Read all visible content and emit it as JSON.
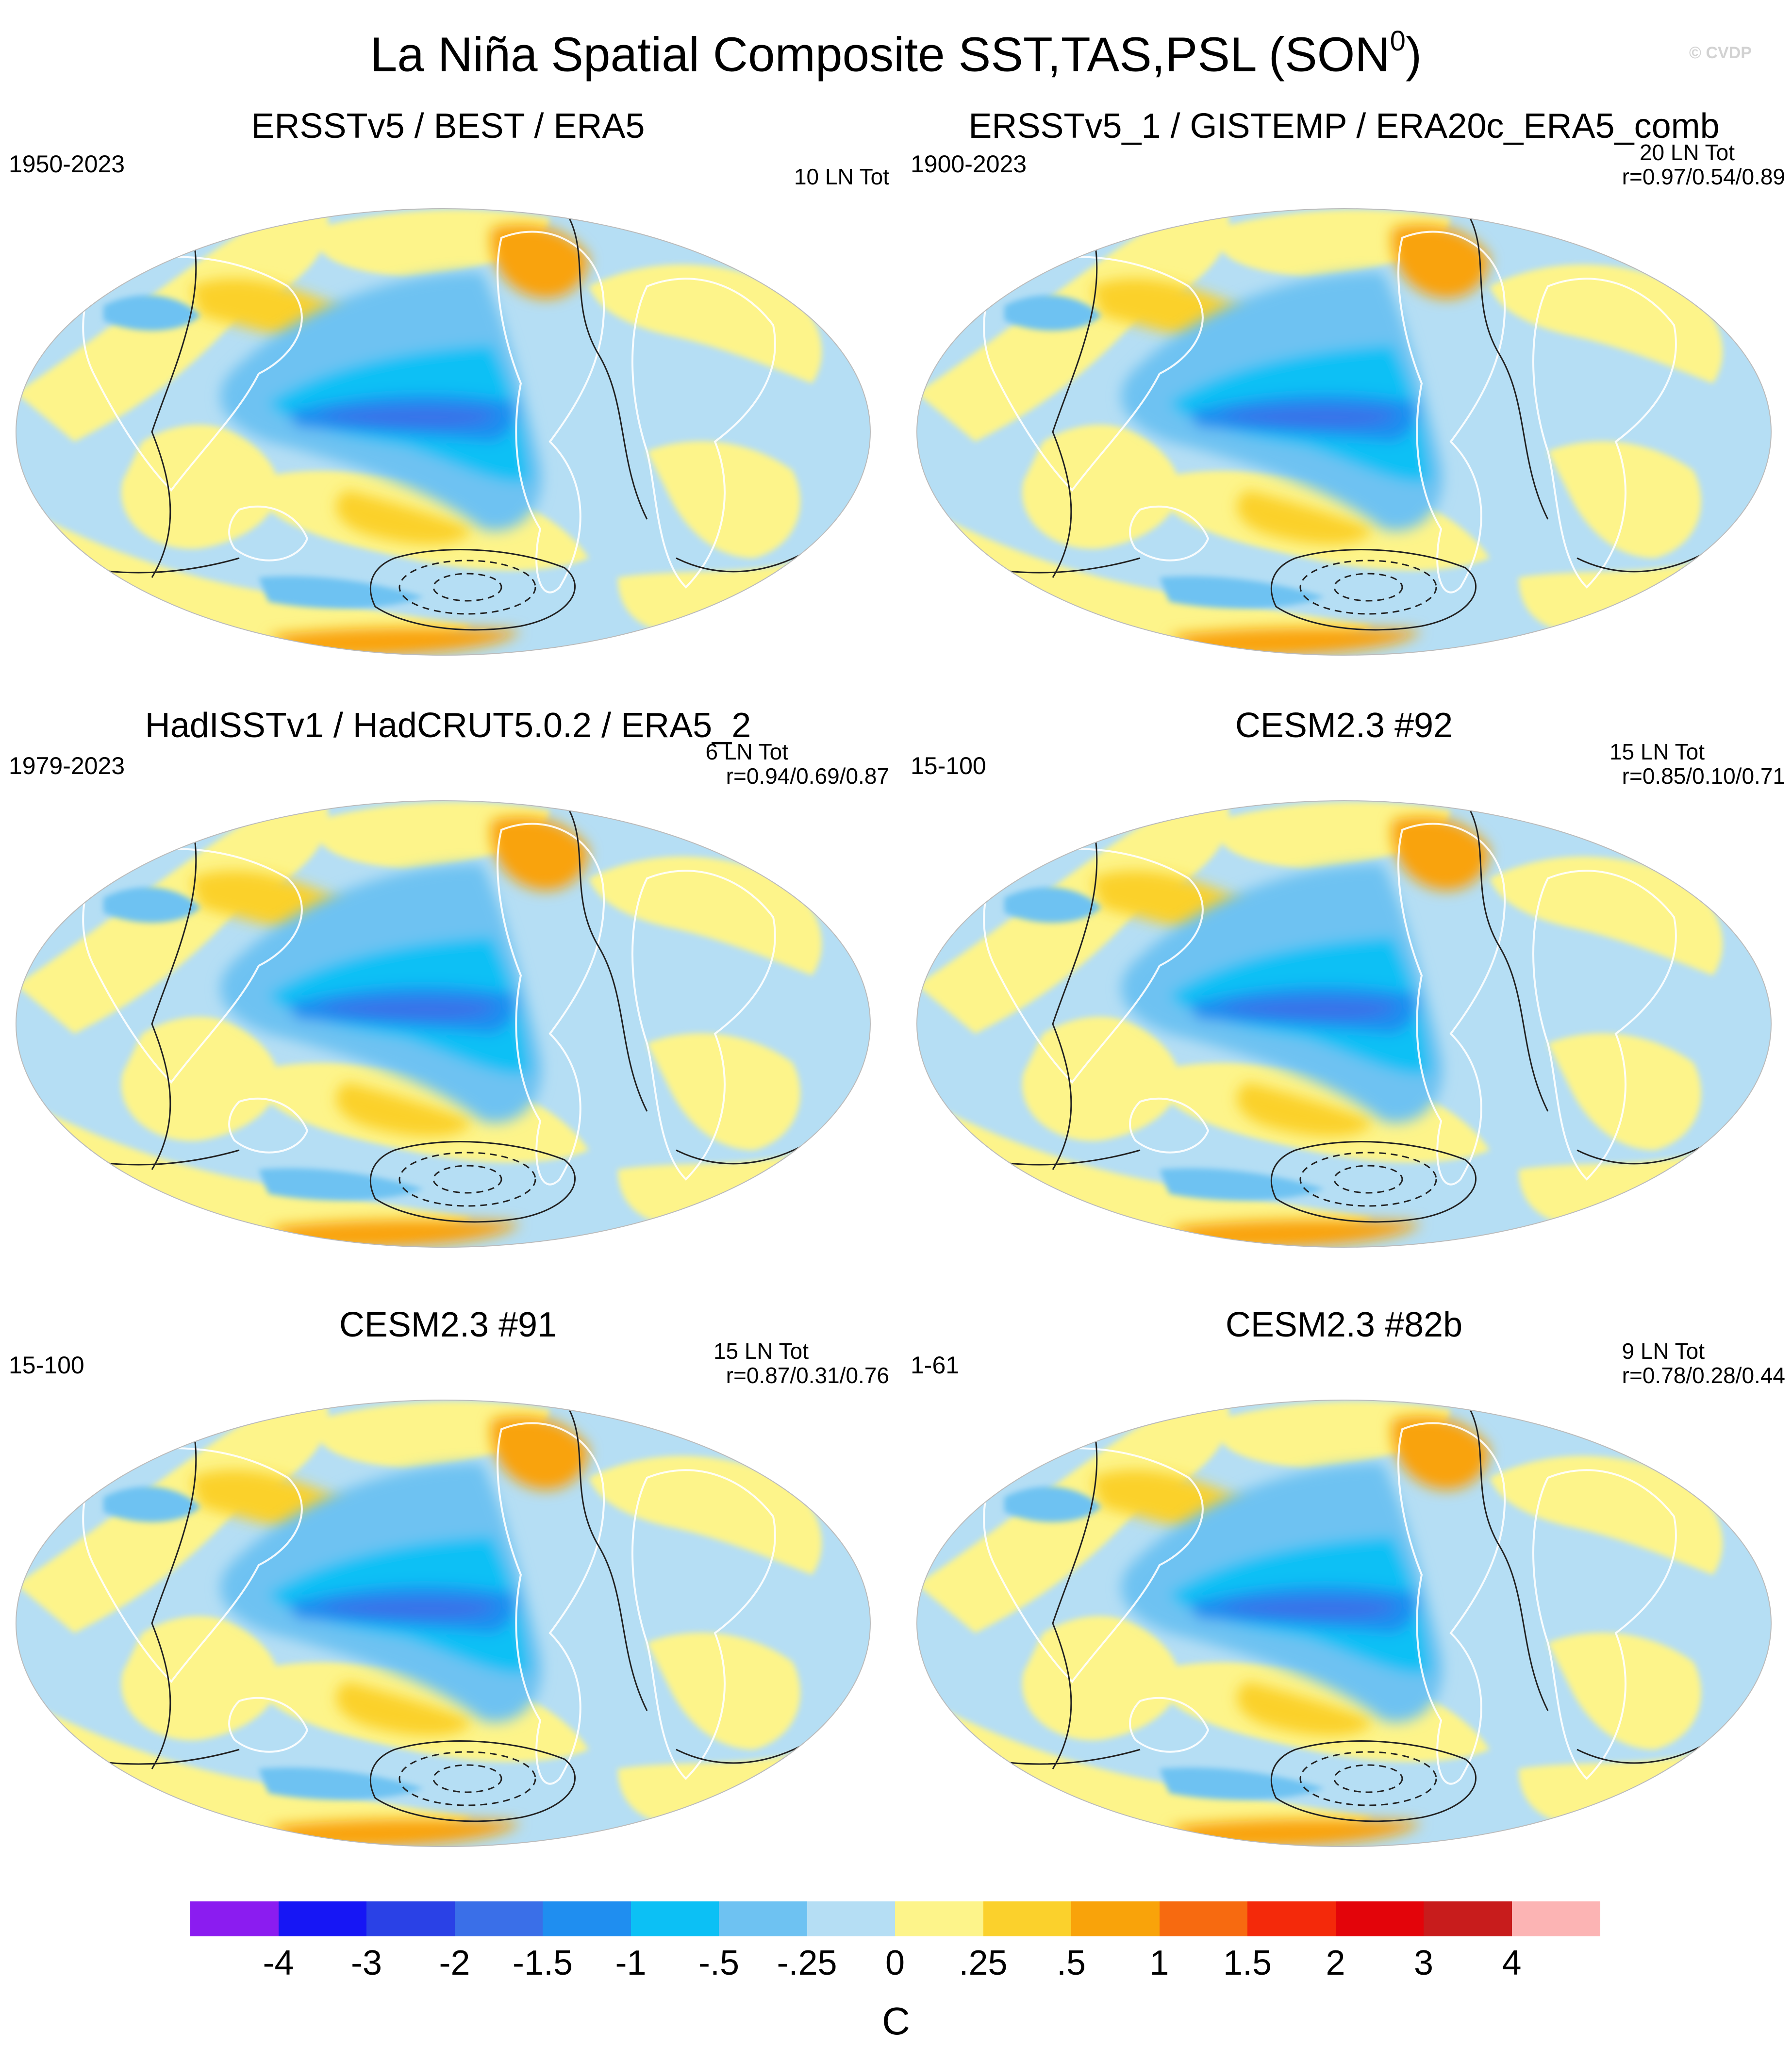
{
  "title": "La Niña Spatial Composite SST,TAS,PSL (SON",
  "title_superscript": "0",
  "title_suffix": ")",
  "watermark": "© CVDP",
  "panels": [
    {
      "title": "ERSSTv5 / BEST / ERA5",
      "period": "1950-2023",
      "count": "10 LN Tot",
      "corr": ""
    },
    {
      "title": "ERSSTv5_1 / GISTEMP / ERA20c_ERA5_comb",
      "period": "1900-2023",
      "count": "20 LN Tot",
      "corr": "r=0.97/0.54/0.89"
    },
    {
      "title": "HadISSTv1 / HadCRUT5.0.2 / ERA5_2",
      "period": "1979-2023",
      "count": "6 LN Tot",
      "corr": "r=0.94/0.69/0.87"
    },
    {
      "title": "CESM2.3 #92",
      "period": "15-100",
      "count": "15 LN Tot",
      "corr": "r=0.85/0.10/0.71"
    },
    {
      "title": "CESM2.3 #91",
      "period": "15-100",
      "count": "15 LN Tot",
      "corr": "r=0.87/0.31/0.76"
    },
    {
      "title": "CESM2.3 #82b",
      "period": "1-61",
      "count": "9 LN Tot",
      "corr": "r=0.78/0.28/0.44"
    }
  ],
  "colorbar": {
    "units": "C",
    "labels": [
      "-4",
      "-3",
      "-2",
      "-1.5",
      "-1",
      "-.5",
      "-.25",
      "0",
      ".25",
      ".5",
      "1",
      "1.5",
      "2",
      "3",
      "4"
    ],
    "colors": [
      "#8b1cf0",
      "#1616f5",
      "#2a41e6",
      "#3a6fe8",
      "#1f8ef0",
      "#0cc0f5",
      "#6ec2f2",
      "#b5def4",
      "#fdf48a",
      "#fbd12c",
      "#f9a30a",
      "#f76a10",
      "#f4290a",
      "#e3040a",
      "#c81c1c",
      "#fcb4b4"
    ]
  },
  "chart_data": {
    "type": "heatmap",
    "title": "La Niña Spatial Composite SST,TAS,PSL (SON0)",
    "projection": "Robinson (global map)",
    "variables": [
      "SST",
      "TAS",
      "PSL"
    ],
    "units": "C",
    "contour_levels": [
      -4,
      -3,
      -2,
      -1.5,
      -1,
      -0.5,
      -0.25,
      0,
      0.25,
      0.5,
      1,
      1.5,
      2,
      3,
      4
    ],
    "pattern": {
      "equatorial_pacific_anomaly": "cold (-1 to -2 C)",
      "north_pacific_horseshoe": "warm (.25 to 1 C)",
      "psl": "contour lines (solid positive, dashed negative)"
    }
  }
}
